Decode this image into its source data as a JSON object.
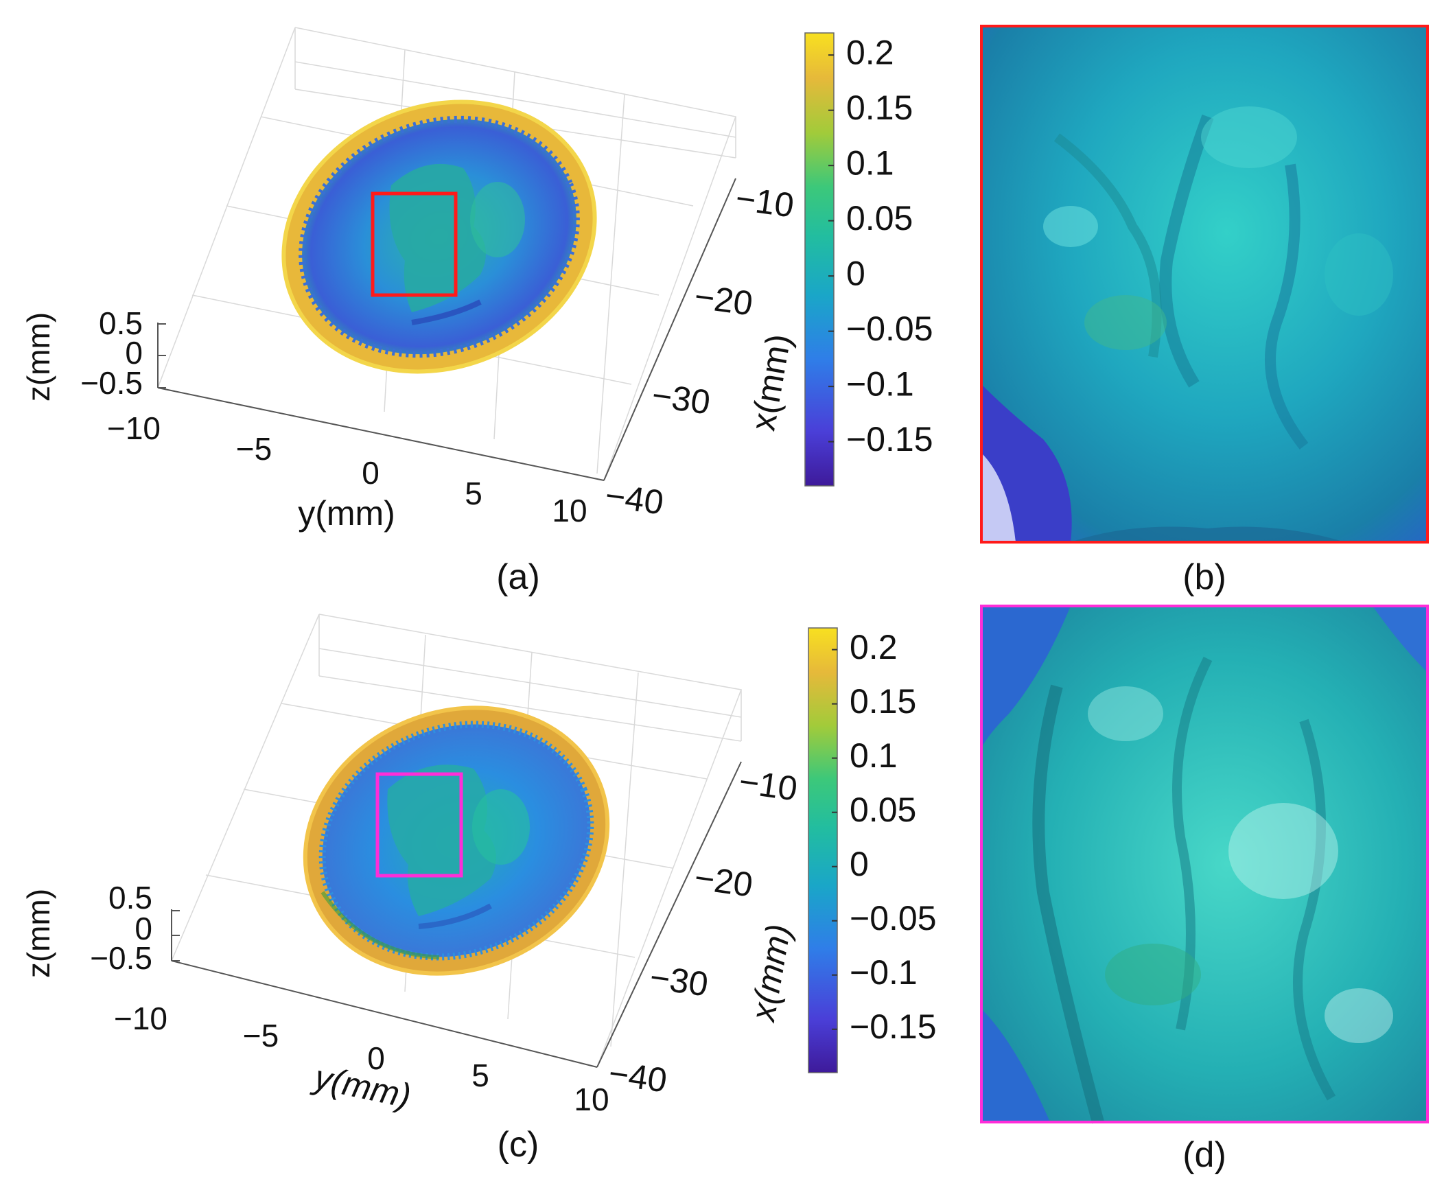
{
  "panels": {
    "a": {
      "caption": "(a)"
    },
    "b": {
      "caption": "(b)"
    },
    "c": {
      "caption": "(c)"
    },
    "d": {
      "caption": "(d)"
    }
  },
  "colors": {
    "roi_a": "#ff1a1a",
    "roi_c": "#ff2dd8",
    "colormap": [
      "#3e1a9a",
      "#4a3fd8",
      "#2f7ee8",
      "#1aa6c8",
      "#22bda0",
      "#3cc87a",
      "#a2cb3a",
      "#e6b93a",
      "#f8e020"
    ]
  },
  "chart_data": [
    {
      "type": "heatmap",
      "panel": "a",
      "description_kind": "3d-surface",
      "xlabel": "x(mm)",
      "ylabel": "y(mm)",
      "zlabel": "z(mm)",
      "x_ticks": [
        "−10",
        "−20",
        "−30",
        "−40"
      ],
      "y_ticks": [
        "−10",
        "−5",
        "0",
        "5",
        "10"
      ],
      "z_ticks": [
        "0.5",
        "0",
        "−0.5"
      ],
      "x_range": [
        -40,
        -5
      ],
      "y_range": [
        -10,
        10
      ],
      "z_range": [
        -0.5,
        0.5
      ],
      "colorbar": {
        "range": [
          -0.19,
          0.22
        ],
        "ticks": [
          "0.2",
          "0.15",
          "0.1",
          "0.05",
          "0",
          "−0.05",
          "−0.1",
          "−0.15"
        ],
        "tick_values": [
          0.2,
          0.15,
          0.1,
          0.05,
          0,
          -0.05,
          -0.1,
          -0.15
        ]
      }
    },
    {
      "type": "heatmap",
      "panel": "c",
      "description_kind": "3d-surface",
      "xlabel": "x(mm)",
      "ylabel": "y(mm)",
      "zlabel": "z(mm)",
      "x_ticks": [
        "−10",
        "−20",
        "−30",
        "−40"
      ],
      "y_ticks": [
        "−10",
        "−5",
        "0",
        "5",
        "10"
      ],
      "z_ticks": [
        "0.5",
        "0",
        "−0.5"
      ],
      "x_range": [
        -40,
        -5
      ],
      "y_range": [
        -10,
        10
      ],
      "z_range": [
        -0.5,
        0.5
      ],
      "colorbar": {
        "range": [
          -0.19,
          0.22
        ],
        "ticks": [
          "0.2",
          "0.15",
          "0.1",
          "0.05",
          "0",
          "−0.05",
          "−0.1",
          "−0.15"
        ],
        "tick_values": [
          0.2,
          0.15,
          0.1,
          0.05,
          0,
          -0.05,
          -0.1,
          -0.15
        ]
      }
    }
  ]
}
